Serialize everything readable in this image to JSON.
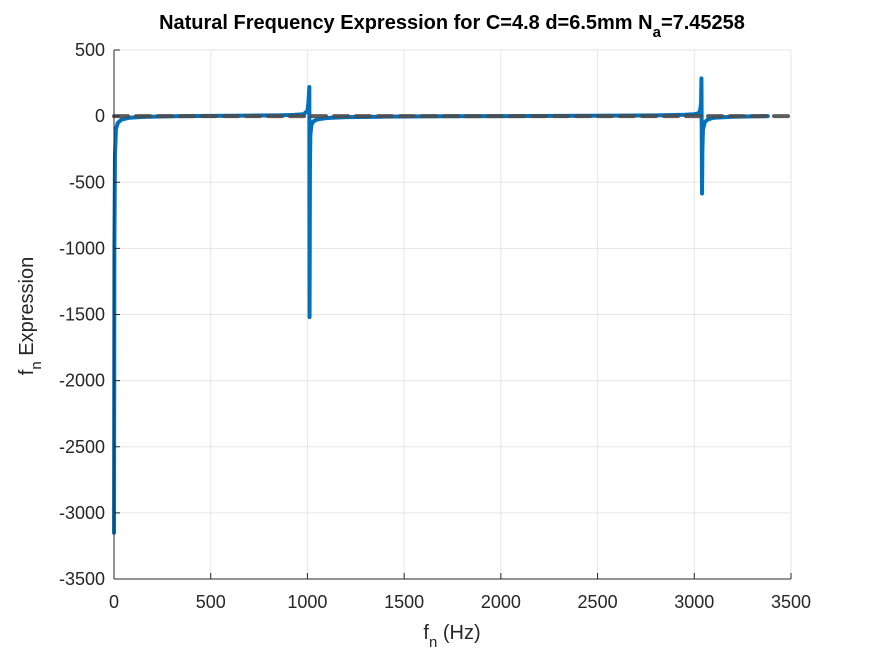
{
  "chart_data": {
    "type": "line",
    "title": {
      "main": "Natural Frequency Expression for C=4.8 d=6.5mm N",
      "sub": "a",
      "tail": "=7.45258"
    },
    "xlabel": {
      "main": "f",
      "sub": "n",
      "tail": " (Hz)"
    },
    "ylabel": {
      "main": "f",
      "sub": "n",
      "tail": " Expression"
    },
    "xlim": [
      0,
      3500
    ],
    "ylim": [
      -3500,
      500
    ],
    "xticks": [
      0,
      500,
      1000,
      1500,
      2000,
      2500,
      3000,
      3500
    ],
    "yticks": [
      500,
      0,
      -500,
      -1000,
      -1500,
      -2000,
      -2500,
      -3000,
      -3500
    ],
    "grid": true,
    "series": [
      {
        "style": "solid",
        "color": "#0072BD",
        "x": [
          0,
          1,
          2,
          5,
          10,
          20,
          40,
          80,
          150,
          300,
          500,
          700,
          850,
          930,
          980,
          1000,
          1005,
          1010,
          1011,
          1013,
          1015,
          1020,
          1030,
          1050,
          1100,
          1200,
          1400,
          1700,
          2000,
          2300,
          2600,
          2800,
          2950,
          3000,
          3020,
          3030,
          3035,
          3037,
          3040,
          3042,
          3045,
          3055,
          3070,
          3100,
          3200,
          3300,
          3380
        ],
        "y": [
          -3150,
          -2200,
          -1000,
          -300,
          -100,
          -50,
          -25,
          -12,
          -6,
          -1,
          2,
          4,
          6,
          9,
          14,
          40,
          100,
          220,
          -1520,
          -400,
          -150,
          -70,
          -40,
          -25,
          -14,
          -8,
          -4,
          -1,
          0,
          2,
          4,
          6,
          10,
          14,
          20,
          40,
          100,
          285,
          -585,
          -250,
          -100,
          -45,
          -25,
          -12,
          -5,
          -2,
          0
        ]
      },
      {
        "style": "dashed",
        "color": "#4D4D4D",
        "x": [
          0,
          3500
        ],
        "y": [
          0,
          0
        ]
      }
    ]
  }
}
